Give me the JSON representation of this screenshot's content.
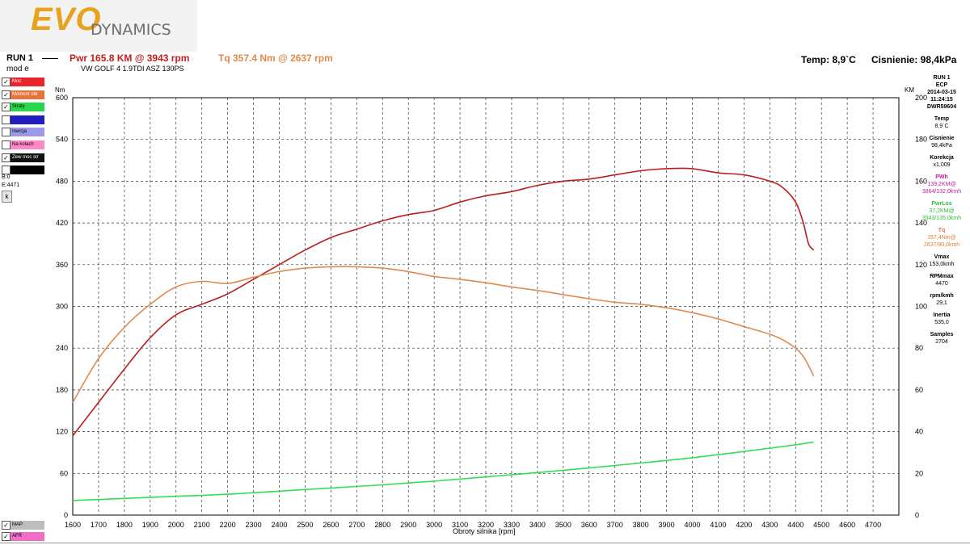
{
  "logo": {
    "part1": "EVO",
    "part2": "DYNAMICS"
  },
  "header": {
    "run_label": "RUN 1",
    "mod_label": "mod e",
    "pwr_summary": "Pwr  165.8 KM @ 3943 rpm",
    "tq_summary": "Tq 357.4 Nm @ 2637 rpm",
    "car_label": "VW GOLF 4 1.9TDI ASZ 130PS",
    "temp_summary": "Temp: 8,9`C",
    "pressure_summary": "Cisnienie: 98,4kPa"
  },
  "left_legend": [
    {
      "checked": true,
      "label": "Moc",
      "color": "#e8252a",
      "text_color": "#ffffff"
    },
    {
      "checked": true,
      "label": "Moment obr",
      "color": "#e7743d",
      "text_color": "#ffffff"
    },
    {
      "checked": true,
      "label": "Straty",
      "color": "#27d94a",
      "text_color": "#000000"
    },
    {
      "checked": false,
      "label": "",
      "color": "#1f1fbf",
      "text_color": "#ffffff"
    },
    {
      "checked": false,
      "label": "Inercja",
      "color": "#9a9ae8",
      "text_color": "#000000"
    },
    {
      "checked": false,
      "label": "Na kolach",
      "color": "#ff88c8",
      "text_color": "#000000"
    },
    {
      "checked": true,
      "label": "Zew moc str",
      "color": "#111111",
      "text_color": "#ffffff"
    },
    {
      "checked": false,
      "label": "",
      "color": "#000000",
      "text_color": "#ffffff"
    }
  ],
  "left_b": "B:0",
  "left_e": "E:4471",
  "k_button": "k",
  "bottom_legend": [
    {
      "checked": true,
      "label": "MAP",
      "color": "#bdbdbd"
    },
    {
      "checked": true,
      "label": "AFR",
      "color": "#f06ec8"
    }
  ],
  "right_panel": {
    "run": "RUN 1",
    "ecp": "ECP",
    "date": "2014-03-15",
    "time": "11:24:15",
    "id": "DWR59604",
    "temp_label": "Temp",
    "temp_value": "8,9`C",
    "press_label": "Cisnienie",
    "press_value": "98,4kPa",
    "korekcja_label": "Korekcja",
    "korekcja_value": "x1,009",
    "pwh_label": "PWh",
    "pwh_value": "139,2KM@",
    "pwh_sub": "3864/132,0kmh",
    "pwrlos_label": "PwrLos",
    "pwrlos_value": "37,2KM@",
    "pwrlos_sub": "3943/135,0kmh",
    "tq_label": "Tq",
    "tq_value": "357,4Nm@",
    "tq_sub": "2637/90,0kmh",
    "vmax_label": "Vmax",
    "vmax_value": "153,0kmh",
    "rpmmax_label": "RPMmax",
    "rpmmax_value": "4470",
    "rpmkmh_label": "rpm/kmh",
    "rpmkmh_value": "29,1",
    "inertia_label": "Inertia",
    "inertia_value": "535,0",
    "samples_label": "Samples",
    "samples_value": "2704"
  },
  "chart_data": {
    "type": "line",
    "xlabel": "Obroty silnika [rpm]",
    "ylabel_left": "Nm",
    "ylabel_right": "KM",
    "xlim": [
      1600,
      4800
    ],
    "ylim_left": [
      0,
      600
    ],
    "ylim_right": [
      0,
      200
    ],
    "x_ticks": [
      1600,
      1700,
      1800,
      1900,
      2000,
      2100,
      2200,
      2300,
      2400,
      2500,
      2600,
      2700,
      2800,
      2900,
      3000,
      3100,
      3200,
      3300,
      3400,
      3500,
      3600,
      3700,
      3800,
      3900,
      4000,
      4100,
      4200,
      4300,
      4400,
      4500,
      4600,
      4700
    ],
    "y_ticks_left": [
      0,
      60,
      120,
      180,
      240,
      300,
      360,
      420,
      480,
      540,
      600
    ],
    "y_ticks_right": [
      0,
      20,
      40,
      60,
      80,
      100,
      120,
      140,
      160,
      180,
      200
    ],
    "grid": true,
    "series": [
      {
        "name": "Moc",
        "axis": "right",
        "color": "#b81f1f",
        "x": [
          1600,
          1700,
          1800,
          1900,
          2000,
          2100,
          2200,
          2300,
          2400,
          2500,
          2600,
          2700,
          2800,
          2900,
          3000,
          3100,
          3200,
          3300,
          3400,
          3500,
          3600,
          3700,
          3800,
          3900,
          4000,
          4100,
          4200,
          4300,
          4350,
          4400,
          4430,
          4450,
          4470
        ],
        "values": [
          38,
          54,
          70,
          85,
          96,
          101,
          106,
          113,
          120,
          127,
          133,
          137,
          141,
          144,
          146,
          150,
          153,
          155,
          158,
          160,
          161,
          163,
          165,
          166,
          166,
          164,
          163,
          160,
          157,
          150,
          140,
          130,
          127
        ]
      },
      {
        "name": "Moment obr",
        "axis": "left",
        "color": "#e08a4e",
        "x": [
          1600,
          1700,
          1800,
          1900,
          2000,
          2100,
          2200,
          2300,
          2400,
          2500,
          2600,
          2700,
          2800,
          2900,
          3000,
          3100,
          3200,
          3300,
          3400,
          3500,
          3600,
          3700,
          3800,
          3900,
          4000,
          4100,
          4200,
          4300,
          4350,
          4400,
          4430,
          4450,
          4470
        ],
        "values": [
          162,
          225,
          270,
          303,
          328,
          336,
          333,
          342,
          350,
          355,
          357,
          357,
          355,
          350,
          343,
          339,
          334,
          328,
          323,
          317,
          311,
          306,
          303,
          298,
          291,
          282,
          271,
          260,
          252,
          240,
          228,
          215,
          200
        ]
      },
      {
        "name": "Straty",
        "axis": "right",
        "color": "#33dd55",
        "x": [
          1600,
          1800,
          2000,
          2200,
          2400,
          2600,
          2800,
          3000,
          3200,
          3400,
          3600,
          3800,
          4000,
          4200,
          4400,
          4470
        ],
        "values": [
          7,
          8,
          9,
          10,
          11.5,
          13,
          14.5,
          16.3,
          18.3,
          20.4,
          22.6,
          25,
          27.5,
          30.5,
          33.7,
          35
        ]
      }
    ]
  }
}
